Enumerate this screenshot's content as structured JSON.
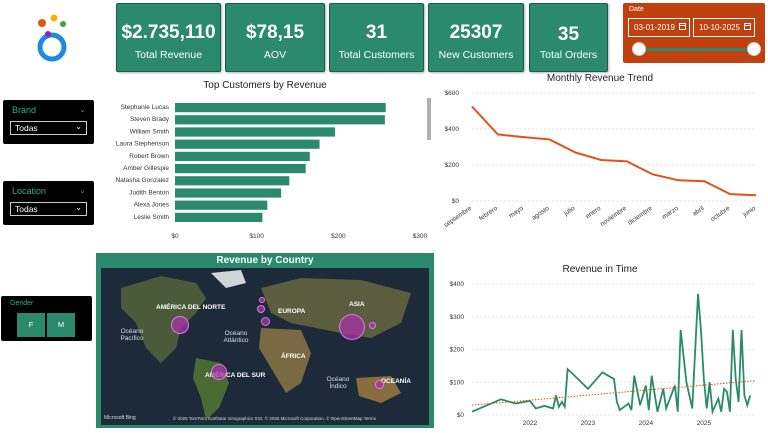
{
  "kpis": [
    {
      "value": "$2.735,110",
      "label": "Total Revenue"
    },
    {
      "value": "$78,15",
      "label": "AOV"
    },
    {
      "value": "31",
      "label": "Total Customers"
    },
    {
      "value": "25307",
      "label": "New Customers"
    },
    {
      "value": "35",
      "label": "Total Orders"
    }
  ],
  "date_filter": {
    "title": "Date",
    "start": "03-01-2019",
    "end": "10-10-2025"
  },
  "slicers": {
    "brand": {
      "title": "Brand",
      "value": "Todas"
    },
    "location": {
      "title": "Location",
      "value": "Todas"
    },
    "gender": {
      "title": "Gender",
      "options": [
        "F",
        "M"
      ]
    }
  },
  "map": {
    "title": "Revenue by Country",
    "labels": {
      "north_america": "AMÉRICA DEL NORTE",
      "europe": "EUROPA",
      "asia": "ASIA",
      "africa": "ÁFRICA",
      "south_america": "AMÉRICA DEL SUR",
      "oceania": "OCEANÍA",
      "pacific": "Océano Pacífico",
      "atlantic": "Océano Atlántico",
      "indian": "Océano Índico"
    },
    "attribution": "© 2025 TomTom, Earthstar Geographics SIO, © 2025 Microsoft Corporation, © OpenStreetMap  Terms",
    "provider": "Microsoft Bing"
  },
  "chart_data": [
    {
      "type": "bar",
      "title": "Top Customers by Revenue",
      "categories": [
        "Stephanie Lucas",
        "Steven Brady",
        "William Smith",
        "Laura Stephenson",
        "Robert Brown",
        "Amber Gillespie",
        "Natasha Gonzalez",
        "Judith Benton",
        "Alexa Jones",
        "Leslie Smith"
      ],
      "values": [
        258,
        257,
        196,
        177,
        165,
        160,
        140,
        130,
        113,
        107
      ],
      "xlim": [
        0,
        300
      ],
      "xticks": [
        "$0",
        "$100",
        "$200",
        "$300"
      ]
    },
    {
      "type": "line",
      "title": "Monthly Revenue Trend",
      "categories": [
        "septiembre",
        "febrero",
        "mayo",
        "agosto",
        "julio",
        "enero",
        "noviembre",
        "diciembre",
        "marzo",
        "abril",
        "octubre",
        "junio"
      ],
      "values": [
        525,
        370,
        355,
        342,
        270,
        228,
        220,
        148,
        115,
        110,
        38,
        32
      ],
      "ylim": [
        0,
        600
      ],
      "yticks": [
        "$0",
        "$200",
        "$400",
        "$600"
      ],
      "color": "#e0521d"
    },
    {
      "type": "line",
      "title": "Revenue in Time",
      "x": [
        2021.0,
        2021.5,
        2021.75,
        2022.0,
        2022.1,
        2022.25,
        2022.4,
        2022.45,
        2022.5,
        2022.55,
        2022.6,
        2022.65,
        2022.8,
        2023.0,
        2023.25,
        2023.45,
        2023.5,
        2023.55,
        2023.7,
        2023.75,
        2023.8,
        2023.9,
        2024.0,
        2024.05,
        2024.1,
        2024.2,
        2024.3,
        2024.35,
        2024.5,
        2024.55,
        2024.6,
        2024.7,
        2024.75,
        2024.8,
        2024.9,
        2024.95,
        2025.0,
        2025.05,
        2025.1,
        2025.15,
        2025.25,
        2025.3,
        2025.35,
        2025.4,
        2025.45,
        2025.5,
        2025.55,
        2025.6,
        2025.65,
        2025.7,
        2025.75,
        2025.8
      ],
      "values": [
        10,
        48,
        35,
        43,
        20,
        28,
        20,
        60,
        25,
        40,
        25,
        140,
        115,
        80,
        130,
        110,
        40,
        15,
        35,
        15,
        120,
        30,
        90,
        15,
        120,
        10,
        80,
        20,
        90,
        10,
        260,
        100,
        60,
        20,
        370,
        260,
        110,
        20,
        100,
        10,
        50,
        10,
        80,
        70,
        10,
        260,
        110,
        40,
        260,
        60,
        30,
        60
      ],
      "trend": [
        30,
        105
      ],
      "xlim": [
        2021.0,
        2025.9
      ],
      "ylim": [
        0,
        400
      ],
      "xticks": [
        "2022",
        "2023",
        "2024",
        "2025"
      ],
      "yticks": [
        "$0",
        "$100",
        "$200",
        "$300",
        "$400"
      ],
      "color": "#2a8a6b"
    }
  ]
}
